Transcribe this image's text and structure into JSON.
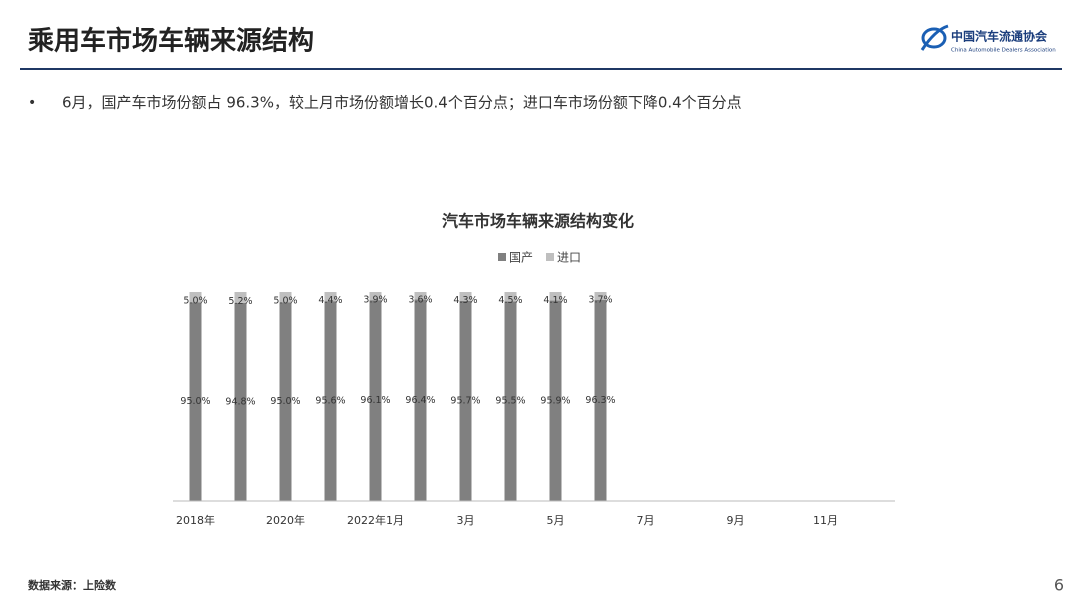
{
  "slide": {
    "title": "乘用车市场车辆来源结构",
    "logo_name": "中国汽车流通协会",
    "logo_subtitle": "China Automobile Dealers Association",
    "bullet": "6月，国产车市场份额占 96.3%，较上月市场份额增长0.4个百分点；进口车市场份额下降0.4个百分点",
    "source": "数据来源：上险数",
    "page": "6"
  },
  "chart_data": {
    "type": "stacked_bar",
    "title": "汽车市场车辆来源结构变化",
    "categories": [
      "2018年",
      null,
      "2020年",
      null,
      "2022年1月",
      null,
      "3月",
      null,
      "5月",
      null,
      "7月",
      null,
      "9月",
      null,
      "11月",
      null
    ],
    "series": [
      {
        "name": "国产",
        "color": "#808080",
        "values": [
          95.0,
          94.8,
          95.0,
          95.6,
          96.1,
          96.4,
          95.7,
          95.5,
          95.9,
          96.3,
          null,
          null,
          null,
          null,
          null,
          null
        ],
        "value_labels": [
          "95.0%",
          "94.8%",
          "95.0%",
          "95.6%",
          "96.1%",
          "96.4%",
          "95.7%",
          "95.5%",
          "95.9%",
          "96.3%",
          null,
          null,
          null,
          null,
          null,
          null
        ]
      },
      {
        "name": "进口",
        "color": "#bfbfbf",
        "values": [
          5.0,
          5.2,
          5.0,
          4.4,
          3.9,
          3.6,
          4.3,
          4.5,
          4.1,
          3.7,
          null,
          null,
          null,
          null,
          null,
          null
        ],
        "value_labels": [
          "5.0%",
          "5.2%",
          "5.0%",
          "4.4%",
          "3.9%",
          "3.6%",
          "4.3%",
          "4.5%",
          "4.1%",
          "3.7%",
          null,
          null,
          null,
          null,
          null,
          null
        ]
      }
    ],
    "ylim": [
      0,
      100
    ],
    "legend": "top"
  }
}
